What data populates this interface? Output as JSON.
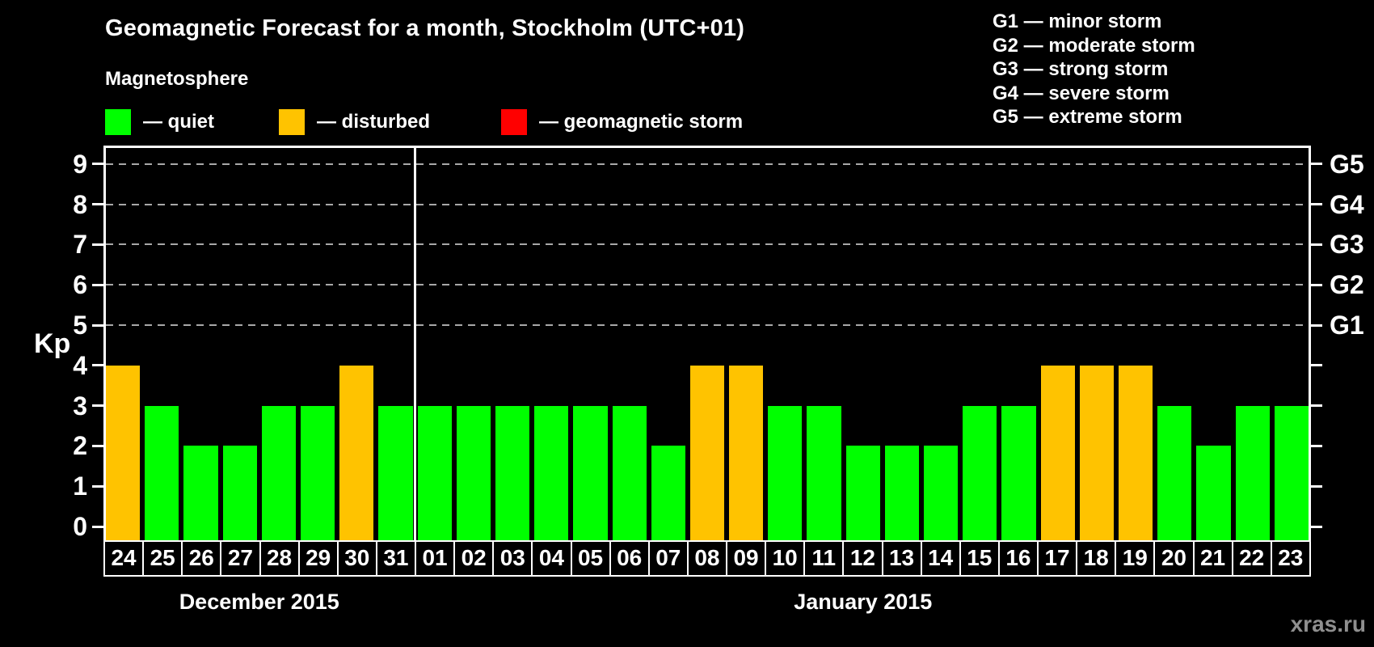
{
  "title": "Geomagnetic Forecast for a month, Stockholm (UTC+01)",
  "subtitle": "Magnetosphere",
  "legend": {
    "items": [
      {
        "name": "quiet",
        "label": "— quiet",
        "color": "#00ff00"
      },
      {
        "name": "disturbed",
        "label": "— disturbed",
        "color": "#ffc300"
      },
      {
        "name": "geomagnetic-storm",
        "label": "— geomagnetic storm",
        "color": "#ff0000"
      }
    ]
  },
  "g_scale_legend": {
    "items": [
      {
        "label": "G1 — minor storm"
      },
      {
        "label": "G2 — moderate storm"
      },
      {
        "label": "G3 — strong storm"
      },
      {
        "label": "G4 — severe storm"
      },
      {
        "label": "G5 — extreme storm"
      }
    ]
  },
  "watermark": "xras.ru",
  "chart_data": {
    "type": "bar",
    "title": "Geomagnetic Forecast for a month, Stockholm (UTC+01)",
    "subtitle": "Magnetosphere",
    "ylabel": "Kp",
    "ylim": [
      0,
      9
    ],
    "yticks": [
      0,
      1,
      2,
      3,
      4,
      5,
      6,
      7,
      8,
      9
    ],
    "grid": "horizontal dashed lines at Kp 5..9",
    "gridlines_at": [
      5,
      6,
      7,
      8,
      9
    ],
    "right_axis_labels": [
      {
        "kp": 5,
        "label": "G1"
      },
      {
        "kp": 6,
        "label": "G2"
      },
      {
        "kp": 7,
        "label": "G3"
      },
      {
        "kp": 8,
        "label": "G4"
      },
      {
        "kp": 9,
        "label": "G5"
      }
    ],
    "status_colors": {
      "quiet": "#00ff00",
      "disturbed": "#ffc300",
      "storm": "#ff0000"
    },
    "months": [
      {
        "label": "December 2015",
        "days": 8
      },
      {
        "label": "January 2015",
        "days": 23
      }
    ],
    "bars": [
      {
        "day": "24",
        "kp": 4,
        "status": "disturbed"
      },
      {
        "day": "25",
        "kp": 3,
        "status": "quiet"
      },
      {
        "day": "26",
        "kp": 2,
        "status": "quiet"
      },
      {
        "day": "27",
        "kp": 2,
        "status": "quiet"
      },
      {
        "day": "28",
        "kp": 3,
        "status": "quiet"
      },
      {
        "day": "29",
        "kp": 3,
        "status": "quiet"
      },
      {
        "day": "30",
        "kp": 4,
        "status": "disturbed"
      },
      {
        "day": "31",
        "kp": 3,
        "status": "quiet"
      },
      {
        "day": "01",
        "kp": 3,
        "status": "quiet"
      },
      {
        "day": "02",
        "kp": 3,
        "status": "quiet"
      },
      {
        "day": "03",
        "kp": 3,
        "status": "quiet"
      },
      {
        "day": "04",
        "kp": 3,
        "status": "quiet"
      },
      {
        "day": "05",
        "kp": 3,
        "status": "quiet"
      },
      {
        "day": "06",
        "kp": 3,
        "status": "quiet"
      },
      {
        "day": "07",
        "kp": 2,
        "status": "quiet"
      },
      {
        "day": "08",
        "kp": 4,
        "status": "disturbed"
      },
      {
        "day": "09",
        "kp": 4,
        "status": "disturbed"
      },
      {
        "day": "10",
        "kp": 3,
        "status": "quiet"
      },
      {
        "day": "11",
        "kp": 3,
        "status": "quiet"
      },
      {
        "day": "12",
        "kp": 2,
        "status": "quiet"
      },
      {
        "day": "13",
        "kp": 2,
        "status": "quiet"
      },
      {
        "day": "14",
        "kp": 2,
        "status": "quiet"
      },
      {
        "day": "15",
        "kp": 3,
        "status": "quiet"
      },
      {
        "day": "16",
        "kp": 3,
        "status": "quiet"
      },
      {
        "day": "17",
        "kp": 4,
        "status": "disturbed"
      },
      {
        "day": "18",
        "kp": 4,
        "status": "disturbed"
      },
      {
        "day": "19",
        "kp": 4,
        "status": "disturbed"
      },
      {
        "day": "20",
        "kp": 3,
        "status": "quiet"
      },
      {
        "day": "21",
        "kp": 2,
        "status": "quiet"
      },
      {
        "day": "22",
        "kp": 3,
        "status": "quiet"
      },
      {
        "day": "23",
        "kp": 3,
        "status": "quiet"
      }
    ]
  }
}
